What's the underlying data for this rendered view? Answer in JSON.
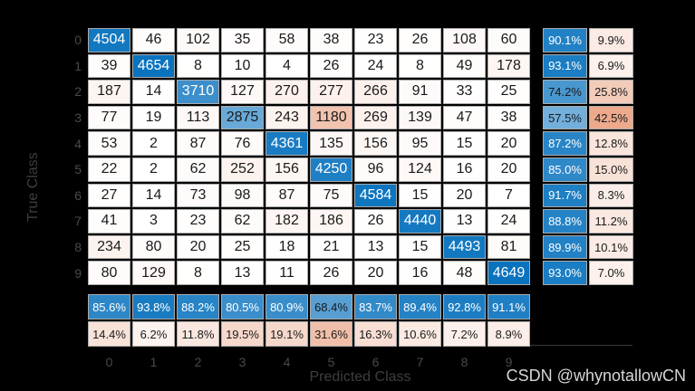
{
  "page": {
    "background": "#000000",
    "watermark": "CSDN @whynotallowCN"
  },
  "colors": {
    "diagonal_base": "#0a73be",
    "offdiagonal_base": "#d95319",
    "cell_border": "#ababab",
    "cell_text_dark": "#1a1a1a",
    "cell_text_light": "#ffffff",
    "tick_label": "#4a4a4a",
    "axis_title": "#3e3e3e",
    "watermark": "#d6d6d6",
    "axes_line": "#3a3a3a"
  },
  "chart_data": {
    "type": "heatmap",
    "variant": "confusion-matrix",
    "xlabel": "Predicted Class",
    "ylabel": "True Class",
    "classes": [
      "0",
      "1",
      "2",
      "3",
      "4",
      "5",
      "6",
      "7",
      "8",
      "9"
    ],
    "matrix": [
      [
        4504,
        46,
        102,
        35,
        58,
        38,
        23,
        26,
        108,
        60
      ],
      [
        39,
        4654,
        8,
        10,
        4,
        26,
        24,
        8,
        49,
        178
      ],
      [
        187,
        14,
        3710,
        127,
        270,
        277,
        266,
        91,
        33,
        25
      ],
      [
        77,
        19,
        113,
        2875,
        243,
        1180,
        269,
        139,
        47,
        38
      ],
      [
        53,
        2,
        87,
        76,
        4361,
        135,
        156,
        95,
        15,
        20
      ],
      [
        22,
        2,
        62,
        252,
        156,
        4250,
        96,
        124,
        16,
        20
      ],
      [
        27,
        14,
        73,
        98,
        87,
        75,
        4584,
        15,
        20,
        7
      ],
      [
        41,
        3,
        23,
        62,
        182,
        186,
        26,
        4440,
        13,
        24
      ],
      [
        234,
        80,
        20,
        25,
        18,
        21,
        13,
        15,
        4493,
        81
      ],
      [
        80,
        129,
        8,
        13,
        11,
        26,
        20,
        16,
        48,
        4649
      ]
    ],
    "row_summary": [
      [
        90.1,
        9.9
      ],
      [
        93.1,
        6.9
      ],
      [
        74.2,
        25.8
      ],
      [
        57.5,
        42.5
      ],
      [
        87.2,
        12.8
      ],
      [
        85.0,
        15.0
      ],
      [
        91.7,
        8.3
      ],
      [
        88.8,
        11.2
      ],
      [
        89.9,
        10.1
      ],
      [
        93.0,
        7.0
      ]
    ],
    "column_summary": [
      [
        85.6,
        14.4
      ],
      [
        93.8,
        6.2
      ],
      [
        88.2,
        11.8
      ],
      [
        80.5,
        19.5
      ],
      [
        80.9,
        19.1
      ],
      [
        68.4,
        31.6
      ],
      [
        83.7,
        16.3
      ],
      [
        89.4,
        10.6
      ],
      [
        92.8,
        7.2
      ],
      [
        91.1,
        8.9
      ]
    ],
    "legend_position": "none",
    "grid": false
  }
}
